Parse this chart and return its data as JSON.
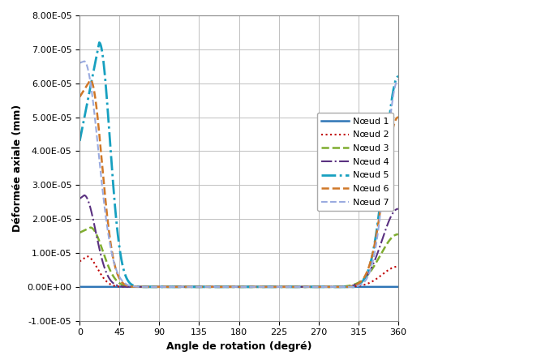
{
  "title": "",
  "xlabel": "Angle de rotation (degré)",
  "ylabel": "Déformée axiale (mm)",
  "xlim": [
    0,
    360
  ],
  "ylim": [
    -1e-05,
    8e-05
  ],
  "xticks": [
    0,
    45,
    90,
    135,
    180,
    225,
    270,
    315,
    360
  ],
  "yticks": [
    -1e-05,
    0.0,
    1e-05,
    2e-05,
    3e-05,
    4e-05,
    5e-05,
    6e-05,
    7e-05,
    8e-05
  ],
  "legend_labels": [
    "Nœud 1",
    "Nœud 2",
    "Nœud 3",
    "Nœud 4",
    "Nœud 5",
    "Nœud 6",
    "Nœud 7"
  ],
  "background": "#ffffff",
  "grid_color": "#c0c0c0"
}
